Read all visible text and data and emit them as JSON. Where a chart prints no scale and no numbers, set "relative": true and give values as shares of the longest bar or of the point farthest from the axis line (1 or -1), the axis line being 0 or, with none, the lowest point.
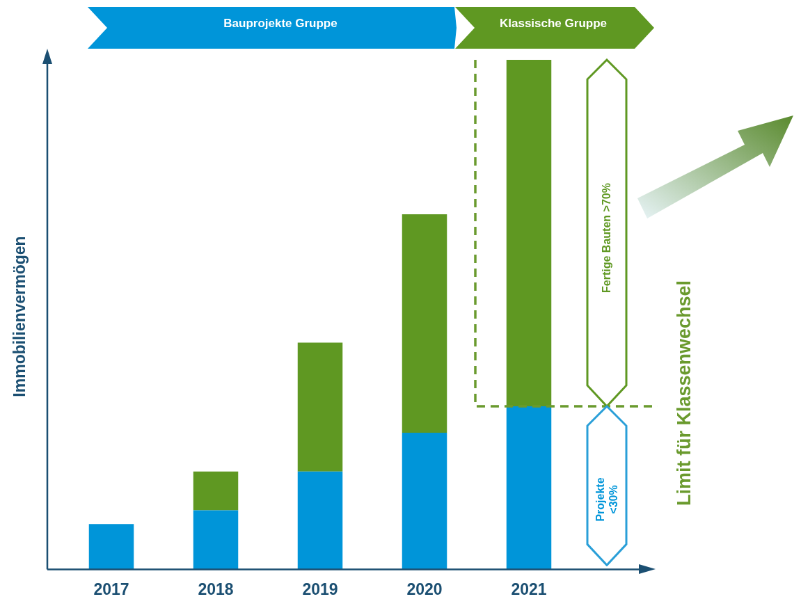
{
  "chart_data": {
    "type": "bar",
    "stacked": true,
    "relative": true,
    "ylabel": "Immobilienvermögen",
    "categories": [
      "2017",
      "2018",
      "2019",
      "2020",
      "2021"
    ],
    "series": [
      {
        "color": "#0095d9",
        "values": [
          0.089,
          0.116,
          0.192,
          0.268,
          0.32
        ]
      },
      {
        "color": "#5f9822",
        "values": [
          0,
          0.076,
          0.253,
          0.429,
          0.68
        ]
      }
    ],
    "ref_lines": [
      {
        "axis": "y",
        "value": 0.32,
        "label": "Limit für Klassenwechsel",
        "color": "#6a9a2e",
        "line_style": "dashed"
      }
    ],
    "annotations": [
      "Bauprojekte Gruppe",
      "Klassische Gruppe",
      "Fertige Bauten >70%",
      "Projekte <30%"
    ],
    "legend": false,
    "grid": false
  }
}
